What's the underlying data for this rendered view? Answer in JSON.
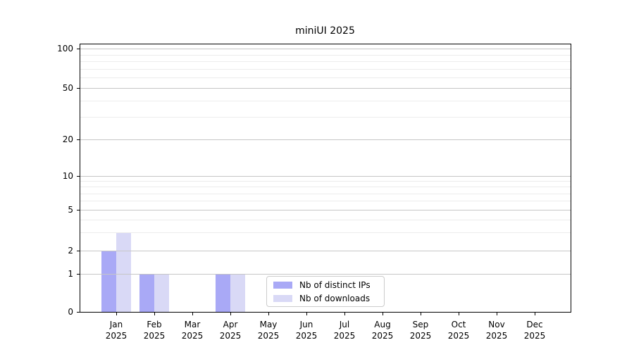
{
  "header": {
    "title": "miniUI 2025"
  },
  "chart_data": {
    "type": "bar",
    "title": "miniUI 2025",
    "categories": [
      "Jan 2025",
      "Feb 2025",
      "Mar 2025",
      "Apr 2025",
      "May 2025",
      "Jun 2025",
      "Jul 2025",
      "Aug 2025",
      "Sep 2025",
      "Oct 2025",
      "Nov 2025",
      "Dec 2025"
    ],
    "series": [
      {
        "name": "Nb of distinct IPs",
        "color": "#a9a9f6",
        "values": [
          2,
          1,
          0,
          1,
          0,
          0,
          0,
          0,
          0,
          0,
          0,
          0
        ]
      },
      {
        "name": "Nb of downloads",
        "color": "#d9d9f6",
        "values": [
          3,
          1,
          0,
          1,
          0,
          0,
          0,
          0,
          0,
          0,
          0,
          0
        ]
      }
    ],
    "xlabel": "",
    "ylabel": "",
    "yscale": "log-like",
    "yticks": [
      100,
      50,
      20,
      10,
      5,
      2,
      1,
      0
    ],
    "ytick_labels": [
      "100",
      "50",
      "20",
      "10",
      "5",
      "2",
      "1",
      "0"
    ],
    "ylim": [
      0,
      110
    ],
    "grid": true,
    "grid_minor": true,
    "legend_position": "inside lower-center-left",
    "colors": {
      "bar_series_1": "#a9a9f6",
      "bar_series_2": "#d9d9f6",
      "grid_major": "#c6c6c6",
      "grid_minor": "#ececec",
      "axis": "#000000",
      "background": "#ffffff"
    }
  }
}
